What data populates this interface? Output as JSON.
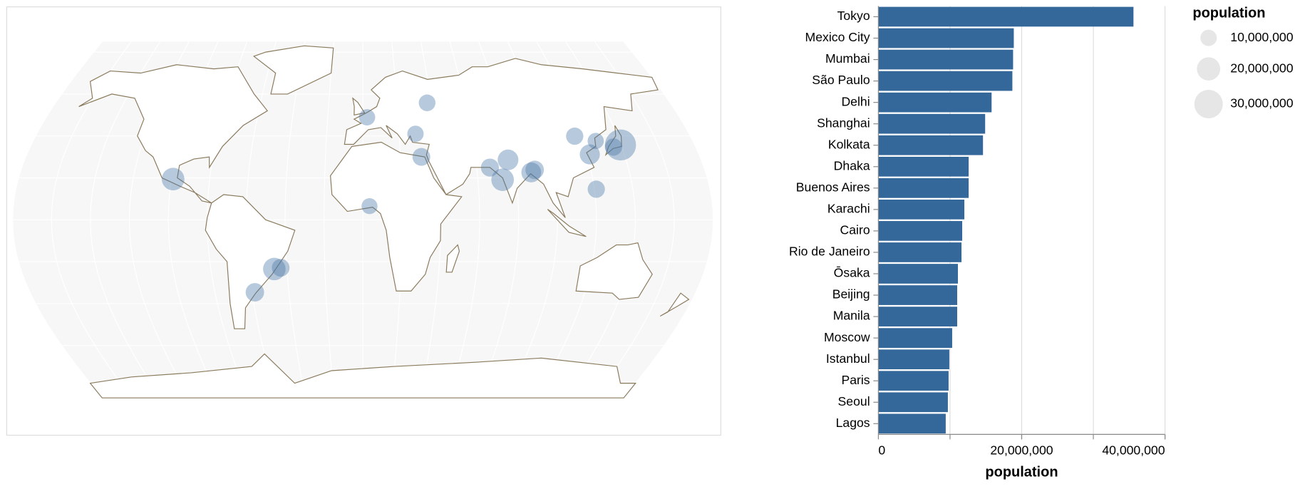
{
  "chart_data": {
    "type": "bar",
    "orientation": "horizontal",
    "categories": [
      "Tokyo",
      "Mexico City",
      "Mumbai",
      "São Paulo",
      "Delhi",
      "Shanghai",
      "Kolkata",
      "Dhaka",
      "Buenos Aires",
      "Karachi",
      "Cairo",
      "Rio de Janeiro",
      "Ōsaka",
      "Beijing",
      "Manila",
      "Moscow",
      "Istanbul",
      "Paris",
      "Seoul",
      "Lagos"
    ],
    "values": [
      35600000,
      18900000,
      18800000,
      18700000,
      15800000,
      14900000,
      14600000,
      12600000,
      12600000,
      12000000,
      11700000,
      11600000,
      11100000,
      11000000,
      11000000,
      10300000,
      9900000,
      9800000,
      9700000,
      9400000
    ],
    "color": "#34679a",
    "x_label": "population",
    "xlim": [
      0,
      40000000
    ],
    "xticks": [
      0,
      {
        "value": 20000000,
        "label": "20,000,000"
      },
      {
        "value": 40000000,
        "label": "40,000,000"
      }
    ],
    "xgrid": [
      10000000,
      20000000,
      30000000,
      40000000
    ],
    "grid": true,
    "legend": {
      "title": "population",
      "position": "right",
      "color": "#e6e6e6",
      "sizes": [
        {
          "value": 10000000,
          "label": "10,000,000"
        },
        {
          "value": 20000000,
          "label": "20,000,000"
        },
        {
          "value": 30000000,
          "label": "30,000,000"
        }
      ]
    },
    "map_bubble_color": "#4c78a8"
  }
}
